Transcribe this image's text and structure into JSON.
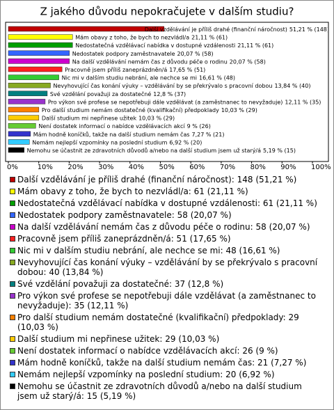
{
  "chart_data": {
    "type": "hbar",
    "title": "Z jakého důvodu nepokračujete v dalším studiu?",
    "categories": [
      "Další vzdělávání je příliš drahé (finanční náročnost)",
      "Mám obavy z toho, že bych to nezvládl/a",
      "Nedostatečná vzdělávací nabídka v dostupné vzdálenosti",
      "Nedostatek podpory zaměstnavatele",
      "Na další vzdělávání nemám čas z důvodu péče o rodinu",
      "Pracovně jsem příliš zaneprázdněn/á",
      "Nic mi v dalším studiu nebrání, ale nechce se mi",
      "Nevyhovující čas konání výuky – vzdělávání by se překrývalo s pracovní dobou",
      "Své vzdělání považuji za dostatečné",
      "Pro výkon své profese se nepotřebuji dále vzdělávat (a zaměstnanec to nevyžaduje)",
      "Pro další studium nemám dostatečné (kvalifikační) předpoklady",
      "Další studium mi nepřinese užitek",
      "Není dostatek informací o nabídce vzdělávacích akcí",
      "Mám hodně koníčků, takže na další studium nemám čas",
      "Nemám nejlepší vzpomínky na poslední studium",
      "Nemohu se účastnit ze zdravotních důvodů a/nebo na další studium jsem už starý/á"
    ],
    "values": [
      51.21,
      21.11,
      21.11,
      20.07,
      20.07,
      17.65,
      16.61,
      13.84,
      12.8,
      12.11,
      10.03,
      10.03,
      9,
      7.27,
      6.92,
      5.19
    ],
    "value_labels": [
      "51,21 % (148)",
      "21,11 % (61)",
      "21,11 % (61)",
      "20,07 % (58)",
      "20,07 % (58)",
      "17,65 % (51)",
      "16,61 % (48)",
      "13,84 % (40)",
      "12,8 % (37)",
      "12,11 % (35)",
      "10,03 % (29)",
      "10,03 % (29)",
      "9 % (26)",
      "7,27 % (21)",
      "6,92 % (20)",
      "5,19 % (15)"
    ],
    "colors": [
      "#c00000",
      "#ffff00",
      "#00a000",
      "#3366ff",
      "#cc00cc",
      "#ff2020",
      "#33cc33",
      "#88aa22",
      "#008080",
      "#9933cc",
      "#ff8000",
      "#ffcc00",
      "#66cc33",
      "#3333cc",
      "#33ccff",
      "#000000"
    ],
    "legend": [
      "Další vzdělávání je příliš drahé (finanční náročnost): 148 (51,21 %)",
      "Mám obavy z toho, že bych to nezvládl/a: 61 (21,11 %)",
      "Nedostatečná vzdělávací nabídka v dostupné vzdálenosti: 61 (21,11 %)",
      "Nedostatek podpory zaměstnavatele: 58 (20,07 %)",
      "Na další vzdělávání nemám čas z důvodu péče o rodinu: 58 (20,07 %)",
      "Pracovně jsem příliš zaneprázdněn/á: 51 (17,65 %)",
      "Nic mi v dalším studiu nebrání, ale nechce se mi: 48 (16,61 %)",
      "Nevyhovující čas konání výuky – vzdělávání by se překrývalo s pracovní dobou: 40 (13,84 %)",
      "Své vzdělání považuji za dostatečné: 37 (12,8 %)",
      "Pro výkon své profese se nepotřebuji dále vzdělávat (a zaměstnanec to nevyžaduje): 35 (12,11 %)",
      "Pro další studium nemám dostatečné (kvalifikační) předpoklady: 29 (10,03 %)",
      "Další studium mi nepřinese užitek: 29 (10,03 %)",
      "Není dostatek informací o nabídce vzdělávacích akcí: 26 (9 %)",
      "Mám hodně koníčků, takže na další studium nemám čas: 21 (7,27 %)",
      "Nemám nejlepší vzpomínky na poslední studium: 20 (6,92 %)",
      "Nemohu se účastnit ze zdravotních důvodů a/nebo na další studium jsem už starý/á: 15 (5,19 %)"
    ],
    "xlim": [
      0,
      100
    ],
    "xticks": [
      {
        "value": 0,
        "label": "0%"
      },
      {
        "value": 10,
        "label": "10%"
      },
      {
        "value": 20,
        "label": "20%"
      },
      {
        "value": 30,
        "label": "30%"
      },
      {
        "value": 40,
        "label": "40%"
      },
      {
        "value": 50,
        "label": "50%"
      },
      {
        "value": 60,
        "label": "60%"
      },
      {
        "value": 70,
        "label": "70%"
      },
      {
        "value": 80,
        "label": "80%"
      },
      {
        "value": 90,
        "label": "90%"
      },
      {
        "value": 100,
        "label": "100%"
      }
    ]
  }
}
